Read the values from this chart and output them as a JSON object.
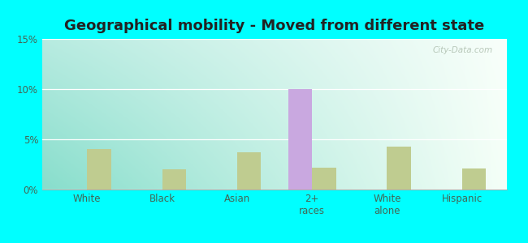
{
  "title": "Geographical mobility - Moved from different state",
  "categories": [
    "White",
    "Black",
    "Asian",
    "2+\nraces",
    "White\nalone",
    "Hispanic"
  ],
  "brooker_values": [
    0.0,
    0.0,
    0.0,
    10.0,
    0.0,
    0.0
  ],
  "florida_values": [
    4.0,
    2.0,
    3.7,
    2.2,
    4.3,
    2.1
  ],
  "brooker_color": "#c9a8e0",
  "florida_color": "#bfcc90",
  "ylim": [
    0,
    15
  ],
  "yticks": [
    0,
    5,
    10,
    15
  ],
  "ytick_labels": [
    "0%",
    "5%",
    "10%",
    "15%"
  ],
  "bg_left": "#aaeedd",
  "bg_right": "#f0fff0",
  "bg_top": "#f8fffc",
  "bg_bottom_left": "#88ddcc",
  "outer_background": "#00ffff",
  "bar_width": 0.32,
  "title_fontsize": 13,
  "axis_label_fontsize": 8.5,
  "legend_fontsize": 9,
  "watermark": "City-Data.com"
}
